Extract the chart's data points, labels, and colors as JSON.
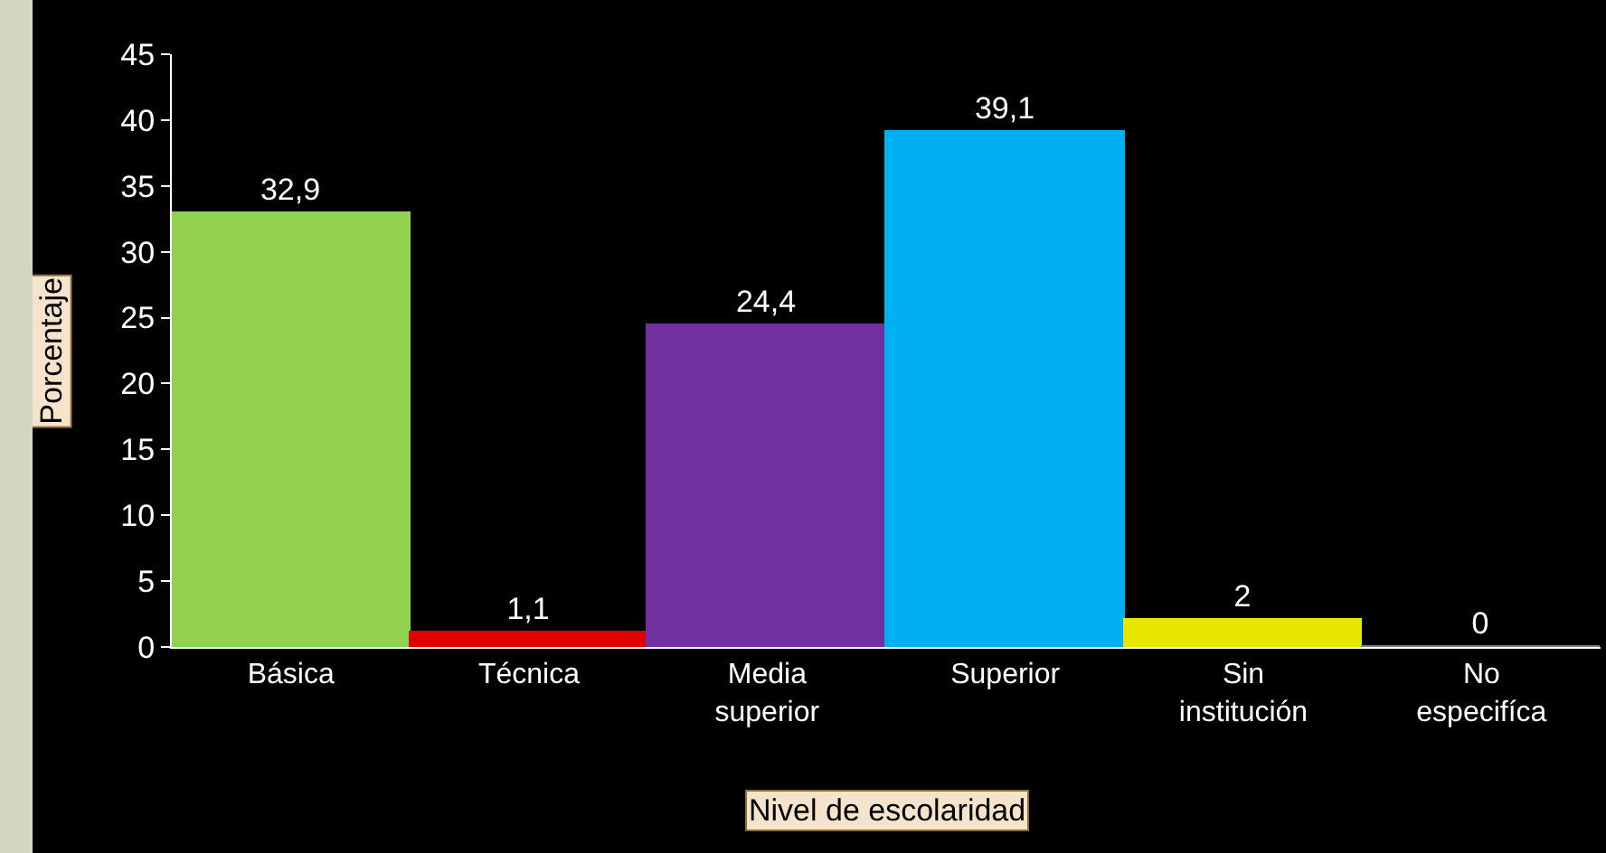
{
  "chart_data": {
    "type": "bar",
    "xlabel": "Nivel de escolaridad",
    "ylabel": "Porcentaje",
    "categories": [
      "Básica",
      "Técnica",
      "Media superior",
      "Superior",
      "Sin institución",
      "No especifíca"
    ],
    "values": [
      32.9,
      1.1,
      24.4,
      39.1,
      2,
      0
    ],
    "colors": [
      "#92d050",
      "#e00000",
      "#7030a0",
      "#00b0f0",
      "#e6e600",
      "#808080"
    ],
    "value_labels": [
      "32,9",
      "1,1",
      "24,4",
      "39,1",
      "2",
      "0"
    ],
    "ylim": [
      0,
      45
    ],
    "yticks": [
      0,
      5,
      10,
      15,
      20,
      25,
      30,
      35,
      40,
      45
    ],
    "grid": false,
    "legend": false
  }
}
